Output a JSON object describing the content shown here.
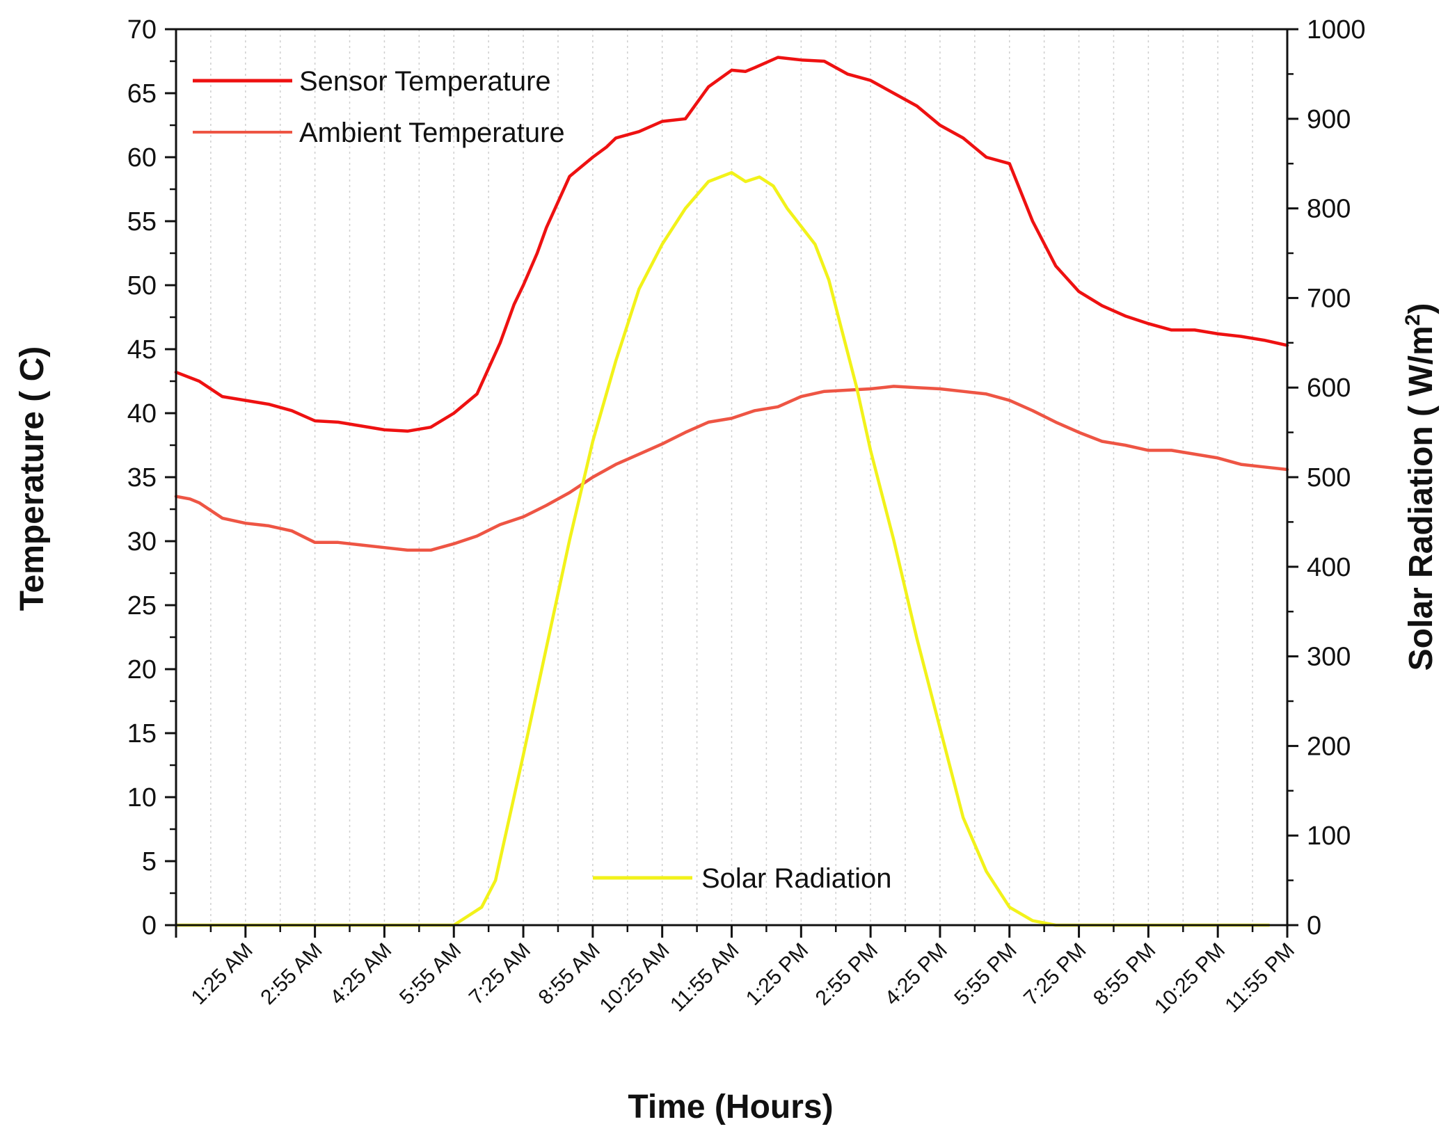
{
  "chart_data": {
    "type": "line",
    "title": "",
    "xlabel": "Time (Hours)",
    "ylabel": "Temperature ( C)",
    "y2label": "Solar Radiation ( W/m",
    "y2label_sup": "2",
    "y2label_end": ")",
    "xlim": [
      0,
      24
    ],
    "ylim": [
      0,
      70
    ],
    "y2lim": [
      0,
      1000
    ],
    "yticks": [
      "0",
      "5",
      "10",
      "15",
      "20",
      "25",
      "30",
      "35",
      "40",
      "45",
      "50",
      "55",
      "60",
      "65",
      "70"
    ],
    "y2ticks": [
      "0",
      "100",
      "200",
      "300",
      "400",
      "500",
      "600",
      "700",
      "800",
      "900",
      "1000"
    ],
    "xticks": [
      {
        "x": 1.5,
        "label": "1:25 AM"
      },
      {
        "x": 3.0,
        "label": "2:55 AM"
      },
      {
        "x": 4.5,
        "label": "4:25 AM"
      },
      {
        "x": 6.0,
        "label": "5:55 AM"
      },
      {
        "x": 7.5,
        "label": "7:25 AM"
      },
      {
        "x": 9.0,
        "label": "8:55 AM"
      },
      {
        "x": 10.5,
        "label": "10:25 AM"
      },
      {
        "x": 12.0,
        "label": "11:55 AM"
      },
      {
        "x": 13.5,
        "label": "1:25 PM"
      },
      {
        "x": 15.0,
        "label": "2:55 PM"
      },
      {
        "x": 16.5,
        "label": "4:25 PM"
      },
      {
        "x": 18.0,
        "label": "5:55 PM"
      },
      {
        "x": 19.5,
        "label": "7:25 PM"
      },
      {
        "x": 21.0,
        "label": "8:55 PM"
      },
      {
        "x": 22.5,
        "label": "10:25 PM"
      },
      {
        "x": 24.0,
        "label": "11:55 PM"
      }
    ],
    "series": [
      {
        "name": "Sensor Temperature",
        "axis": "left",
        "color": "#ee1111",
        "x": [
          0,
          0.5,
          1,
          1.5,
          2,
          2.5,
          3,
          3.5,
          4,
          4.5,
          5,
          5.5,
          6,
          6.5,
          7,
          7.3,
          7.5,
          7.8,
          8,
          8.5,
          9,
          9.3,
          9.5,
          10,
          10.5,
          11,
          11.5,
          12,
          12.3,
          12.5,
          13,
          13.5,
          14,
          14.5,
          15,
          15.5,
          16,
          16.5,
          17,
          17.5,
          18,
          18.5,
          19,
          19.5,
          20,
          20.5,
          21,
          21.5,
          22,
          22.5,
          23,
          23.5,
          24
        ],
        "y": [
          43.2,
          42.5,
          41.3,
          41.0,
          40.7,
          40.2,
          39.4,
          39.3,
          39.0,
          38.7,
          38.6,
          38.9,
          40.0,
          41.5,
          45.5,
          48.5,
          50.0,
          52.5,
          54.5,
          58.5,
          60.0,
          60.8,
          61.5,
          62.0,
          62.8,
          63.0,
          65.5,
          66.8,
          66.7,
          67.0,
          67.8,
          67.6,
          67.5,
          66.5,
          66.0,
          65.0,
          64.0,
          62.5,
          61.5,
          60.0,
          59.5,
          55.0,
          51.5,
          49.5,
          48.4,
          47.6,
          47.0,
          46.5,
          46.5,
          46.2,
          46.0,
          45.7,
          45.3
        ]
      },
      {
        "name": "Ambient Temperature",
        "axis": "left",
        "color": "#ee5544",
        "x": [
          0,
          0.3,
          0.5,
          1,
          1.5,
          2,
          2.5,
          3,
          3.5,
          4,
          4.5,
          5,
          5.5,
          6,
          6.5,
          7,
          7.5,
          8,
          8.5,
          9,
          9.5,
          10,
          10.5,
          11,
          11.5,
          12,
          12.5,
          13,
          13.5,
          14,
          14.5,
          15,
          15.5,
          16,
          16.5,
          17,
          17.5,
          18,
          18.5,
          19,
          19.5,
          20,
          20.5,
          21,
          21.5,
          22,
          22.5,
          23,
          23.5,
          24
        ],
        "y": [
          33.5,
          33.3,
          33.0,
          31.8,
          31.4,
          31.2,
          30.8,
          29.9,
          29.9,
          29.7,
          29.5,
          29.3,
          29.3,
          29.8,
          30.4,
          31.3,
          31.9,
          32.8,
          33.8,
          35.0,
          36.0,
          36.8,
          37.6,
          38.5,
          39.3,
          39.6,
          40.2,
          40.5,
          41.3,
          41.7,
          41.8,
          41.9,
          42.1,
          42.0,
          41.9,
          41.7,
          41.5,
          41.0,
          40.2,
          39.3,
          38.5,
          37.8,
          37.5,
          37.1,
          37.1,
          36.8,
          36.5,
          36.0,
          35.8,
          35.6
        ]
      },
      {
        "name": "Solar Radiation",
        "axis": "right",
        "color": "#f2f21a",
        "x": [
          0,
          1,
          2,
          3,
          4,
          5,
          6,
          6.3,
          6.6,
          6.9,
          7.2,
          7.5,
          8,
          8.5,
          9,
          9.5,
          10,
          10.5,
          11,
          11.5,
          12,
          12.3,
          12.6,
          12.9,
          13.2,
          13.5,
          13.8,
          14.1,
          14.4,
          14.7,
          15,
          15.5,
          16,
          16.5,
          17,
          17.5,
          18,
          18.5,
          19,
          19.3,
          19.5,
          19.7,
          20,
          21,
          22,
          23,
          23.6
        ],
        "y": [
          0,
          0,
          0,
          0,
          0,
          0,
          0,
          10,
          20,
          50,
          120,
          190,
          310,
          430,
          540,
          630,
          710,
          760,
          800,
          830,
          840,
          830,
          835,
          825,
          800,
          780,
          760,
          720,
          660,
          600,
          530,
          430,
          320,
          220,
          120,
          60,
          20,
          5,
          0,
          0,
          0,
          0,
          0,
          0,
          0,
          0,
          0
        ]
      }
    ],
    "legend": [
      {
        "label": "Sensor Temperature",
        "color": "#ee1111",
        "placement": "top-left"
      },
      {
        "label": "Ambient Temperature",
        "color": "#ee5544",
        "placement": "top-left"
      },
      {
        "label": "Solar Radiation",
        "color": "#f2f21a",
        "placement": "bottom-center"
      }
    ]
  }
}
